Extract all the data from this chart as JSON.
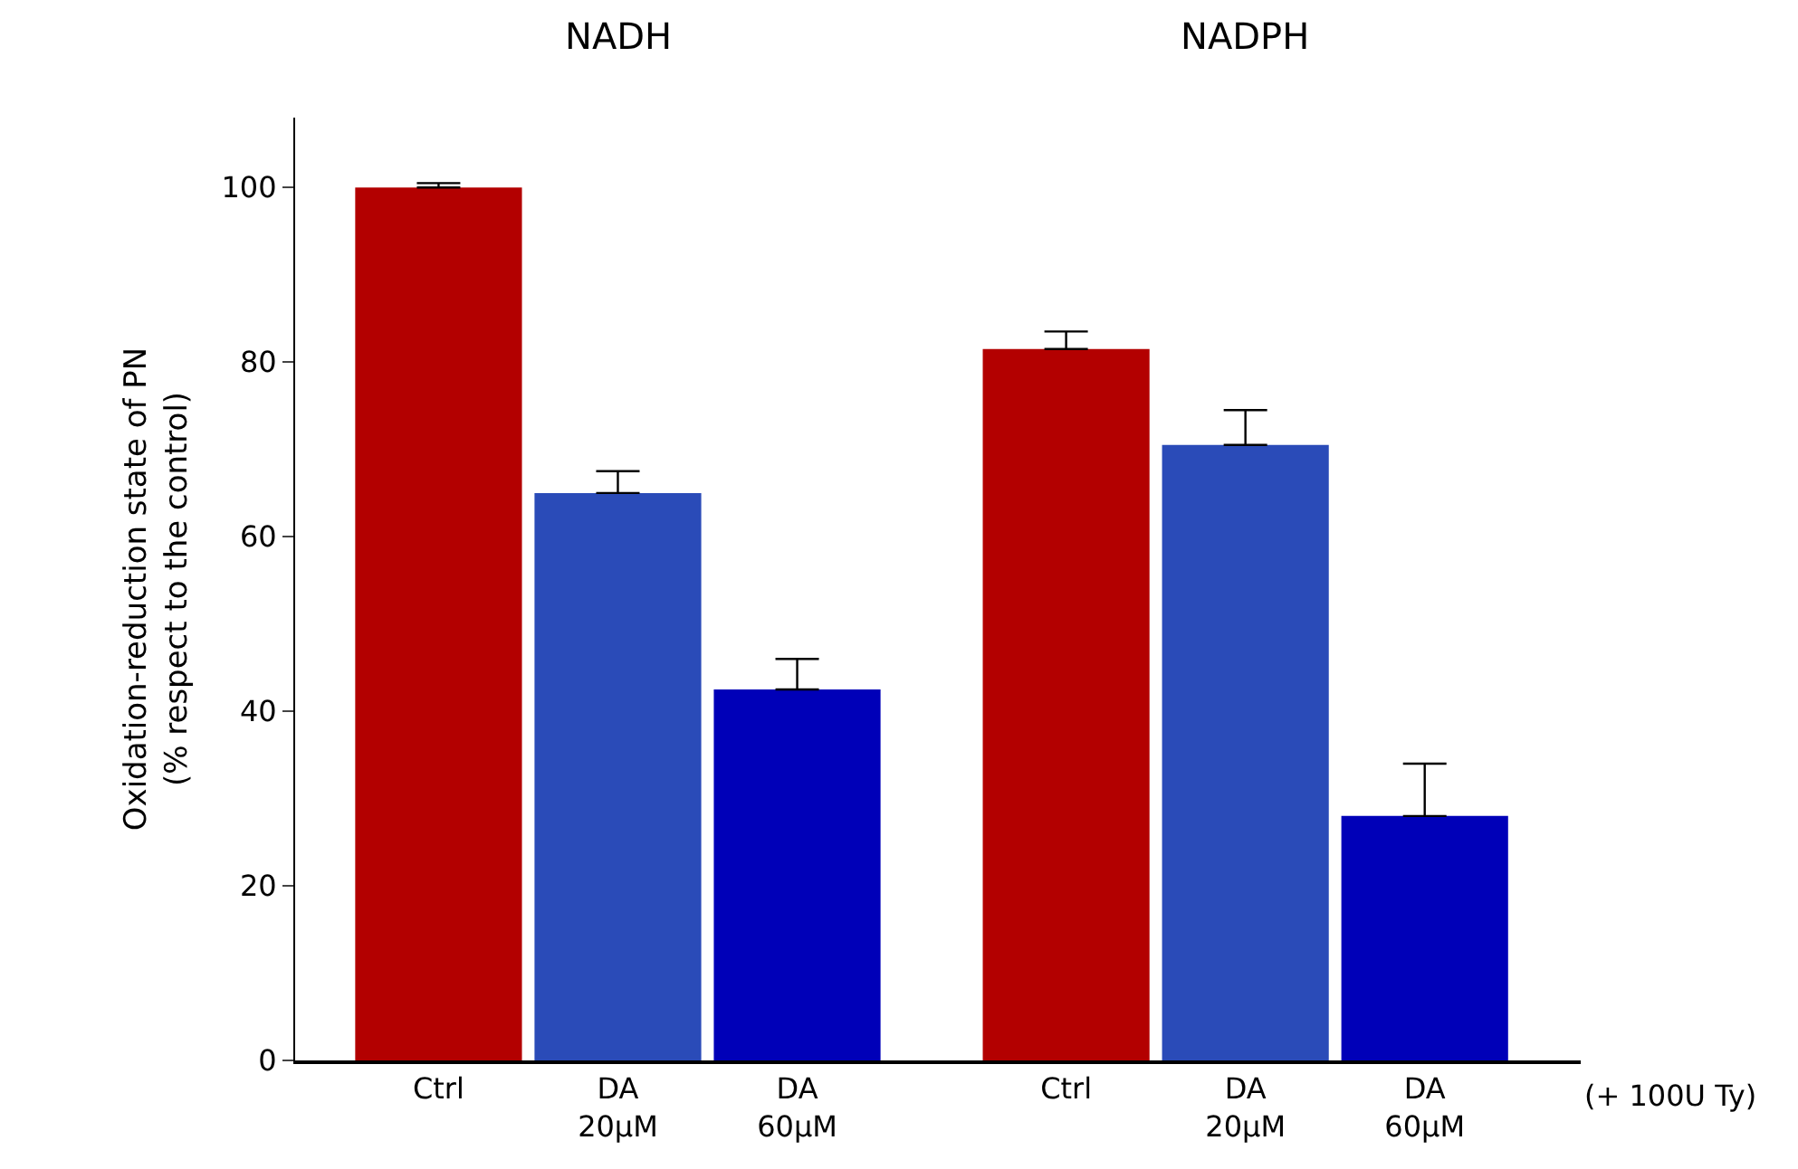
{
  "chart_data": {
    "type": "bar",
    "categories": [
      "Ctrl",
      "DA\n20μM",
      "DA\n60μM",
      "Ctrl",
      "DA\n20μM",
      "DA\n60μM"
    ],
    "values": [
      100,
      65,
      42.5,
      81.5,
      70.5,
      28
    ],
    "errors": [
      0.5,
      2.5,
      3.5,
      2,
      4,
      6
    ],
    "colors": [
      "#b30000",
      "#2a4bb8",
      "#0000b8",
      "#b30000",
      "#2a4bb8",
      "#0000b8"
    ],
    "ylabel": "Oxidation-reduction state of PN\n(% respect to the control)",
    "ylim": [
      0,
      108
    ],
    "yticks": [
      0,
      20,
      40,
      60,
      80,
      100
    ],
    "grid": false,
    "annotations": [
      "NADH",
      "NADPH",
      "(+ 100U Ty)"
    ]
  }
}
